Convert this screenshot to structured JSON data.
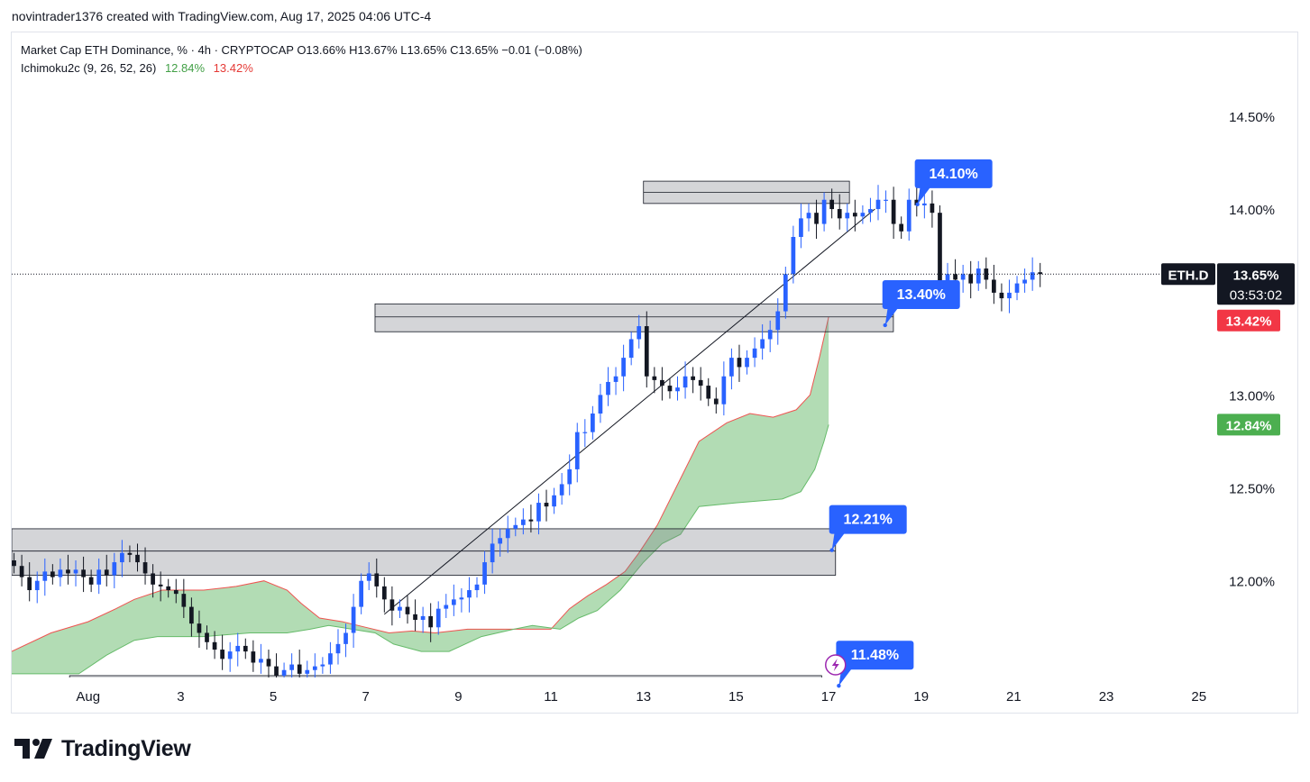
{
  "credit": "novintrader1376 created with TradingView.com, Aug 17, 2025 04:06 UTC-4",
  "legend": {
    "series_line": "Market Cap ETH Dominance, % · 4h · CRYPTOCAP  O13.66%  H13.67%  L13.65%  C13.65%  −0.01 (−0.08%)",
    "indicator_name": "Ichimoku2c (9, 26, 52, 26)",
    "indicator_value_1": "12.84%",
    "indicator_value_2": "13.42%"
  },
  "brand": "TradingView",
  "colors": {
    "up": "#2962ff",
    "down": "#131722",
    "cloud": "#a5d6a7",
    "cloud_edge": "#ef5350",
    "zone": "#d1d4dc",
    "callout": "#2962ff",
    "price_tag": "#131722",
    "tag_red": "#f23645",
    "tag_green": "#4caf50"
  },
  "chart_data": {
    "type": "candlestick",
    "symbol": "ETH.D",
    "interval": "4h",
    "y_unit": "%",
    "ylim": [
      11.48,
      14.64
    ],
    "y_ticks": [
      "14.50%",
      "14.00%",
      "13.00%",
      "12.50%",
      "12.00%"
    ],
    "y_tick_values": [
      14.5,
      14.0,
      13.0,
      12.5,
      12.0
    ],
    "x_range_days": [
      0.35,
      26.2
    ],
    "x_ticks": [
      {
        "label": "Aug",
        "day": 2.0
      },
      {
        "label": "3",
        "day": 4.0
      },
      {
        "label": "5",
        "day": 6.0
      },
      {
        "label": "7",
        "day": 8.0
      },
      {
        "label": "9",
        "day": 10.0
      },
      {
        "label": "11",
        "day": 12.0
      },
      {
        "label": "13",
        "day": 14.0
      },
      {
        "label": "15",
        "day": 16.0
      },
      {
        "label": "17",
        "day": 18.0
      },
      {
        "label": "19",
        "day": 20.0
      },
      {
        "label": "21",
        "day": 22.0
      },
      {
        "label": "23",
        "day": 24.0
      },
      {
        "label": "25",
        "day": 26.0
      }
    ],
    "candles_start_day": 0.4,
    "candle_step_day": 0.1667,
    "closes": [
      12.08,
      12.02,
      11.95,
      12.0,
      12.05,
      12.02,
      12.06,
      12.04,
      12.06,
      12.02,
      11.98,
      12.06,
      12.03,
      12.1,
      12.15,
      12.14,
      12.1,
      12.04,
      11.98,
      11.97,
      11.95,
      11.93,
      11.86,
      11.77,
      11.72,
      11.67,
      11.63,
      11.58,
      11.62,
      11.65,
      11.62,
      11.56,
      11.58,
      11.54,
      11.49,
      11.52,
      11.55,
      11.5,
      11.52,
      11.54,
      11.55,
      11.61,
      11.66,
      11.72,
      11.86,
      12.0,
      12.04,
      11.97,
      11.9,
      11.84,
      11.86,
      11.82,
      11.79,
      11.81,
      11.75,
      11.85,
      11.87,
      11.9,
      11.91,
      11.95,
      11.98,
      12.1,
      12.2,
      12.23,
      12.28,
      12.3,
      12.33,
      12.32,
      12.42,
      12.4,
      12.46,
      12.52,
      12.6,
      12.8,
      12.8,
      12.9,
      13.0,
      13.07,
      13.1,
      13.2,
      13.3,
      13.37,
      13.1,
      13.08,
      13.05,
      13.02,
      13.04,
      13.1,
      13.08,
      13.05,
      12.98,
      12.95,
      13.1,
      13.2,
      13.15,
      13.2,
      13.25,
      13.3,
      13.35,
      13.45,
      13.65,
      13.85,
      13.95,
      13.98,
      13.92,
      14.05,
      14.0,
      13.95,
      13.98,
      13.96,
      13.98,
      14.0,
      14.05,
      14.05,
      13.92,
      13.88,
      14.05,
      14.02,
      14.03,
      13.98,
      13.6,
      13.65,
      13.62,
      13.65,
      13.6,
      13.68,
      13.62,
      13.55,
      13.52,
      13.55,
      13.6,
      13.62,
      13.66,
      13.65
    ],
    "last_price": "13.65%",
    "countdown": "03:53:02",
    "ichimoku_labels": [
      "13.42%",
      "12.84%"
    ],
    "cloud_span_a": [
      [
        0.35,
        11.62
      ],
      [
        1.2,
        11.72
      ],
      [
        2.0,
        11.78
      ],
      [
        2.6,
        11.85
      ],
      [
        3.0,
        11.9
      ],
      [
        3.6,
        11.95
      ],
      [
        4.5,
        11.95
      ],
      [
        5.2,
        11.97
      ],
      [
        5.8,
        12.0
      ],
      [
        6.3,
        11.95
      ],
      [
        6.6,
        11.88
      ],
      [
        7.0,
        11.8
      ],
      [
        7.5,
        11.78
      ],
      [
        8.0,
        11.75
      ],
      [
        8.5,
        11.72
      ],
      [
        9.0,
        11.73
      ],
      [
        9.5,
        11.72
      ],
      [
        10.2,
        11.74
      ],
      [
        11.0,
        11.74
      ],
      [
        12.0,
        11.74
      ],
      [
        12.4,
        11.85
      ],
      [
        12.8,
        11.92
      ],
      [
        13.2,
        11.98
      ],
      [
        13.6,
        12.05
      ],
      [
        13.9,
        12.15
      ],
      [
        14.3,
        12.3
      ],
      [
        14.7,
        12.5
      ],
      [
        15.2,
        12.75
      ],
      [
        15.8,
        12.85
      ],
      [
        16.3,
        12.9
      ],
      [
        16.8,
        12.88
      ],
      [
        17.3,
        12.92
      ],
      [
        17.6,
        13.0
      ],
      [
        17.8,
        13.2
      ],
      [
        18.0,
        13.42
      ]
    ],
    "cloud_span_b": [
      [
        0.35,
        11.5
      ],
      [
        1.8,
        11.5
      ],
      [
        2.4,
        11.6
      ],
      [
        3.0,
        11.68
      ],
      [
        3.5,
        11.7
      ],
      [
        4.5,
        11.7
      ],
      [
        5.5,
        11.72
      ],
      [
        6.3,
        11.72
      ],
      [
        6.8,
        11.74
      ],
      [
        7.2,
        11.76
      ],
      [
        7.7,
        11.74
      ],
      [
        8.2,
        11.72
      ],
      [
        8.6,
        11.66
      ],
      [
        9.2,
        11.62
      ],
      [
        9.8,
        11.62
      ],
      [
        10.5,
        11.7
      ],
      [
        11.2,
        11.74
      ],
      [
        11.6,
        11.76
      ],
      [
        12.2,
        11.74
      ],
      [
        12.6,
        11.8
      ],
      [
        13.0,
        11.84
      ],
      [
        13.5,
        11.95
      ],
      [
        14.0,
        12.1
      ],
      [
        14.4,
        12.2
      ],
      [
        14.8,
        12.25
      ],
      [
        15.2,
        12.4
      ],
      [
        16.0,
        12.42
      ],
      [
        17.0,
        12.44
      ],
      [
        17.4,
        12.48
      ],
      [
        17.7,
        12.6
      ],
      [
        17.9,
        12.75
      ],
      [
        18.0,
        12.84
      ]
    ],
    "zones": [
      {
        "day_from": 14.0,
        "day_to": 18.45,
        "top": 14.15,
        "bottom": 14.03
      },
      {
        "day_from": 8.2,
        "day_to": 19.4,
        "top": 13.49,
        "bottom": 13.34
      },
      {
        "day_from": 0.35,
        "day_to": 18.15,
        "top": 12.28,
        "bottom": 12.03
      },
      {
        "day_from": 1.6,
        "day_to": 17.85,
        "top": 11.49,
        "bottom": 11.46
      }
    ],
    "zone_mid_lines": [
      {
        "day_from": 14.0,
        "day_to": 18.45,
        "value": 14.09
      },
      {
        "day_from": 8.2,
        "day_to": 19.4,
        "value": 13.42
      },
      {
        "day_from": 0.35,
        "day_to": 18.15,
        "value": 12.16
      }
    ],
    "trendline": [
      [
        8.4,
        11.82
      ],
      [
        19.0,
        14.0
      ]
    ],
    "callouts": [
      {
        "label": "14.10%",
        "day": 20.7,
        "value": 14.19
      },
      {
        "label": "13.40%",
        "day": 20.0,
        "value": 13.54
      },
      {
        "label": "12.21%",
        "day": 18.85,
        "value": 12.33
      },
      {
        "label": "11.48%",
        "day": 19.0,
        "value": 11.6
      }
    ]
  }
}
